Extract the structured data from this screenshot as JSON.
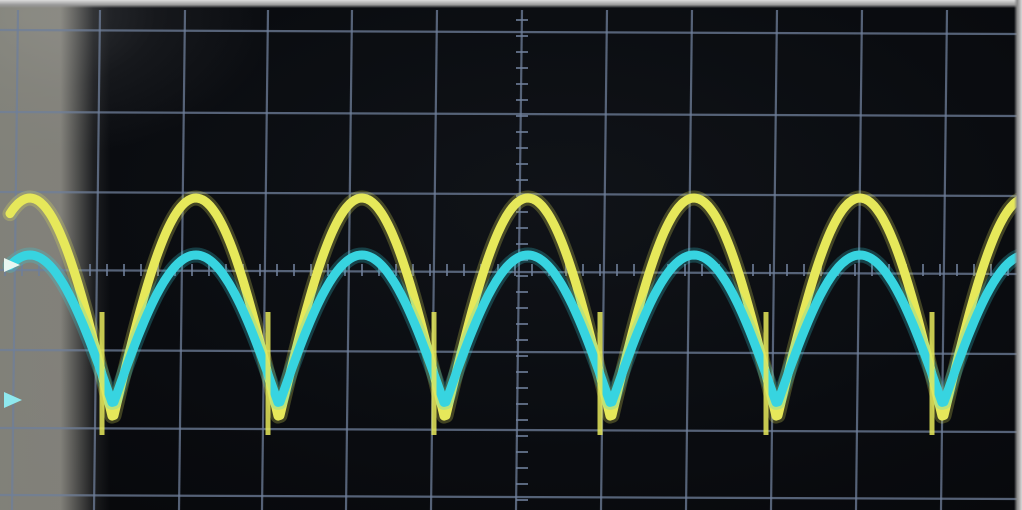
{
  "screen": {
    "background": "#0b0d12",
    "grid_color": "#6f7f9a",
    "grid_divisions": {
      "horizontal": 12,
      "vertical": 7
    }
  },
  "traces": [
    {
      "name": "",
      "color": "#e6e85a",
      "shape": "full-wave-rectified-sine",
      "cycles_visible": 6
    },
    {
      "name": "",
      "color": "#37d4e0",
      "shape": "full-wave-rectified-sine",
      "cycles_visible": 6
    }
  ],
  "markers": [
    {
      "color": "#8fe9ef",
      "shape": "channel-level-arrow"
    }
  ]
}
